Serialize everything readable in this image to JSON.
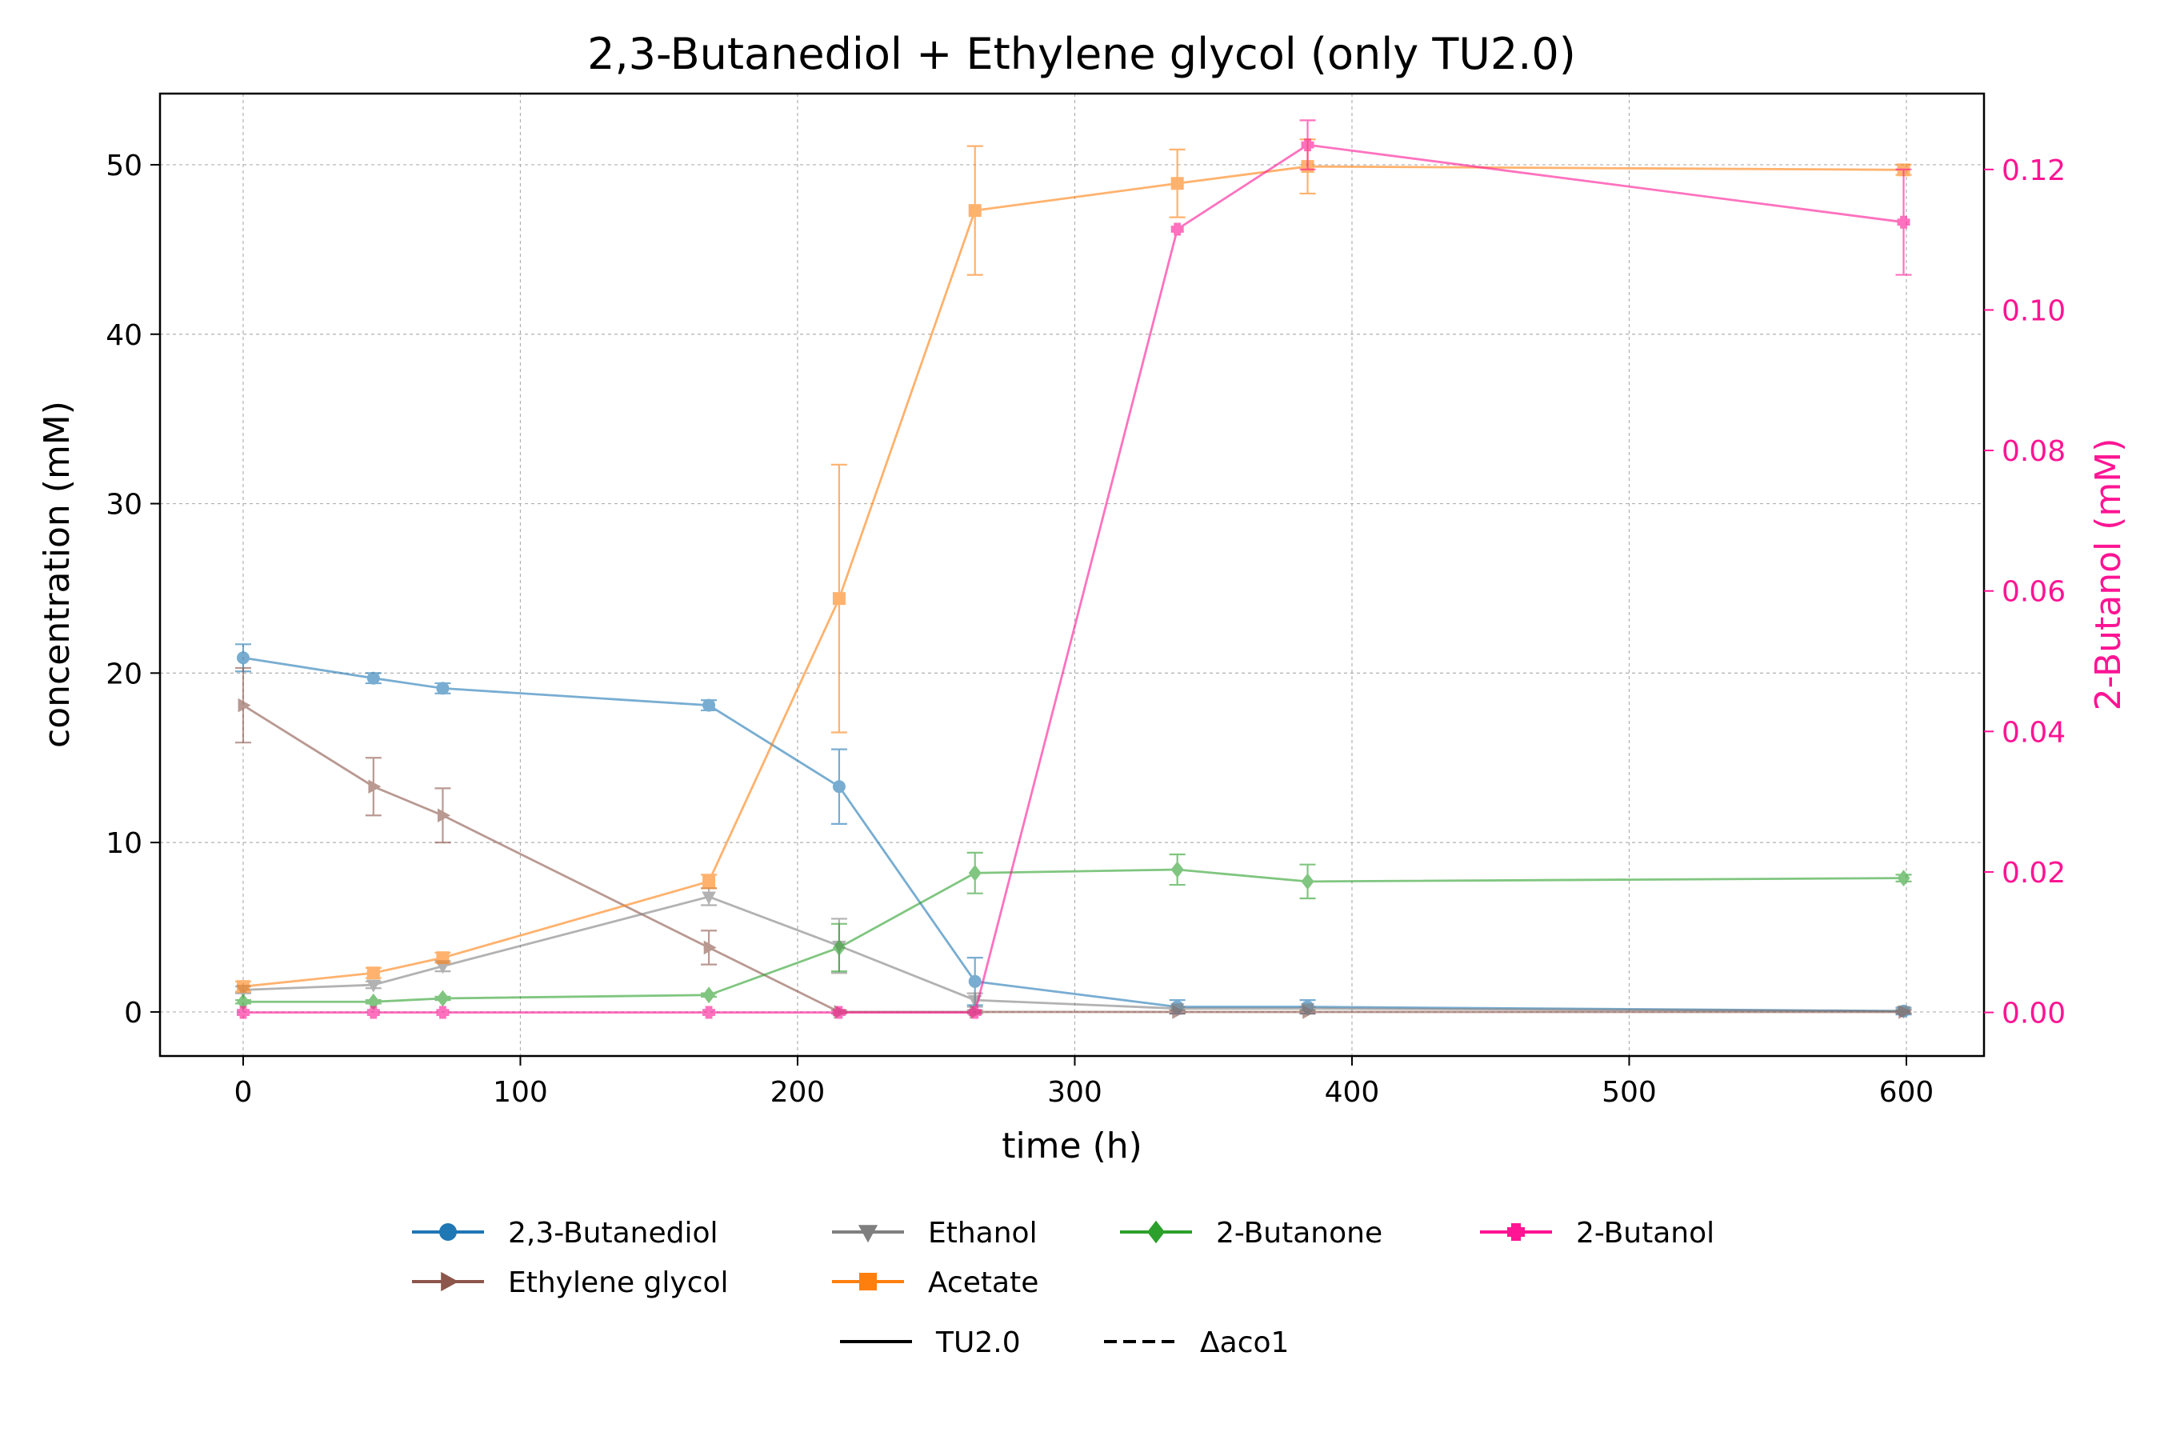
{
  "chart_data": {
    "type": "line",
    "title": "2,3-Butanediol + Ethylene glycol (only TU2.0)",
    "xlabel": "time (h)",
    "ylabel": "concentration (mM)",
    "y2label": "2-Butanol (mM)",
    "xlim": [
      -30,
      628
    ],
    "ylim": [
      -2.6,
      54.2
    ],
    "y2lim": [
      -0.0062,
      0.1308
    ],
    "xticks": [
      "0",
      "100",
      "200",
      "300",
      "400",
      "500",
      "600"
    ],
    "yticks": [
      "0",
      "10",
      "20",
      "30",
      "40",
      "50"
    ],
    "y2ticks": [
      "0.00",
      "0.02",
      "0.04",
      "0.06",
      "0.08",
      "0.10",
      "0.12"
    ],
    "grid": true,
    "legend_position": "bottom-center",
    "series": [
      {
        "name": "2,3-Butanediol",
        "color": "#1f77b4",
        "marker": "circle",
        "axis": "left",
        "x": [
          0,
          47,
          72,
          168,
          215,
          264,
          337,
          384,
          599
        ],
        "y": [
          20.9,
          19.7,
          19.1,
          18.1,
          13.3,
          1.8,
          0.3,
          0.3,
          0.05
        ],
        "err": [
          0.8,
          0.3,
          0.3,
          0.3,
          2.2,
          1.4,
          0.4,
          0.4,
          0.2
        ]
      },
      {
        "name": "Ethylene glycol",
        "color": "#8c564b",
        "marker": "triangle-right",
        "axis": "left",
        "x": [
          0,
          47,
          72,
          168,
          215,
          264,
          337,
          384,
          599
        ],
        "y": [
          18.1,
          13.3,
          11.6,
          3.8,
          0.0,
          0.0,
          0.0,
          0.0,
          0.0
        ],
        "err": [
          2.2,
          1.7,
          1.6,
          1.0,
          0.1,
          0.1,
          0.1,
          0.1,
          0.1
        ]
      },
      {
        "name": "Ethanol",
        "color": "#7f7f7f",
        "marker": "triangle-down",
        "axis": "left",
        "x": [
          0,
          47,
          72,
          168,
          215,
          264,
          337,
          384,
          599
        ],
        "y": [
          1.3,
          1.6,
          2.7,
          6.8,
          3.9,
          0.7,
          0.2,
          0.2,
          0.05
        ],
        "err": [
          0.2,
          0.2,
          0.3,
          0.5,
          1.6,
          0.4,
          0.1,
          0.1,
          0.1
        ]
      },
      {
        "name": "Acetate",
        "color": "#ff7f0e",
        "marker": "square",
        "axis": "left",
        "x": [
          0,
          47,
          72,
          168,
          215,
          264,
          337,
          384,
          599
        ],
        "y": [
          1.5,
          2.3,
          3.2,
          7.7,
          24.4,
          47.3,
          48.9,
          49.9,
          49.7
        ],
        "err": [
          0.3,
          0.3,
          0.3,
          0.4,
          7.9,
          3.8,
          2.0,
          1.6,
          0.3
        ]
      },
      {
        "name": "2-Butanone",
        "color": "#2ca02c",
        "marker": "diamond",
        "axis": "left",
        "x": [
          0,
          47,
          72,
          168,
          215,
          264,
          337,
          384,
          599
        ],
        "y": [
          0.6,
          0.6,
          0.8,
          1.0,
          3.8,
          8.2,
          8.4,
          7.7,
          7.9
        ],
        "err": [
          0.1,
          0.1,
          0.1,
          0.1,
          1.4,
          1.2,
          0.9,
          1.0,
          0.2
        ]
      },
      {
        "name": "2-Butanol",
        "color": "#ff1493",
        "marker": "plus",
        "axis": "right",
        "x": [
          0,
          47,
          72,
          168,
          215,
          264,
          337,
          384,
          599
        ],
        "y": [
          0.0,
          0.0,
          0.0,
          0.0,
          0.0,
          0.0,
          0.1115,
          0.1235,
          0.1125
        ],
        "err": [
          0.0,
          0.0,
          0.0,
          0.0,
          0.0,
          0.0,
          0.0,
          0.0035,
          0.0075
        ]
      }
    ],
    "legend_styles": [
      {
        "name": "TU2.0",
        "dash": "solid"
      },
      {
        "name": "Δaco1",
        "dash": "dashed"
      }
    ]
  }
}
